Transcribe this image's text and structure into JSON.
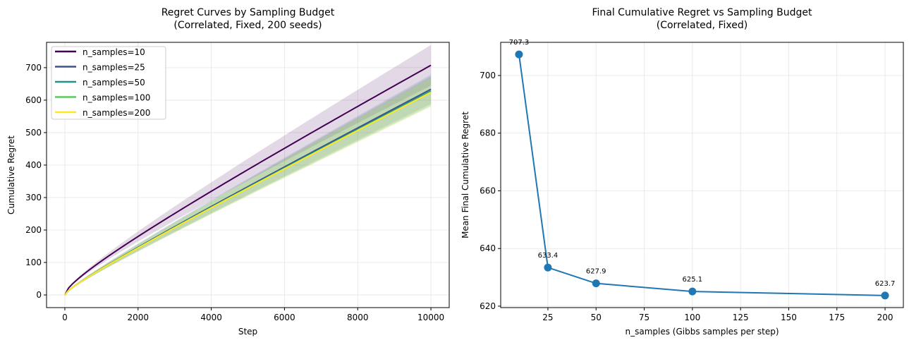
{
  "chart_data": [
    {
      "type": "line",
      "title_line1": "Regret Curves by Sampling Budget",
      "title_line2": "(Correlated, Fixed, 200 seeds)",
      "xlabel": "Step",
      "ylabel": "Cumulative Regret",
      "xlim": [
        -500,
        10500
      ],
      "ylim": [
        -39,
        778
      ],
      "xticks": [
        0,
        2000,
        4000,
        6000,
        8000,
        10000
      ],
      "yticks": [
        0,
        100,
        200,
        300,
        400,
        500,
        600,
        700
      ],
      "grid": true,
      "legend_position": "top-left",
      "series": [
        {
          "name": "n_samples=10",
          "color": "#440154",
          "final": 707.3,
          "band": 50
        },
        {
          "name": "n_samples=25",
          "color": "#3b528b",
          "final": 633.4,
          "band": 36
        },
        {
          "name": "n_samples=50",
          "color": "#21918c",
          "final": 627.9,
          "band": 36
        },
        {
          "name": "n_samples=100",
          "color": "#5ec962",
          "final": 625.1,
          "band": 36
        },
        {
          "name": "n_samples=200",
          "color": "#fde725",
          "final": 623.7,
          "band": 36
        }
      ]
    },
    {
      "type": "line",
      "title_line1": "Final Cumulative Regret vs Sampling Budget",
      "title_line2": "(Correlated, Fixed)",
      "xlabel": "n_samples (Gibbs samples per step)",
      "ylabel": "Mean Final Cumulative Regret",
      "xlim": [
        0.5,
        209.5
      ],
      "ylim": [
        619.5,
        711.5
      ],
      "xticks": [
        25,
        50,
        75,
        100,
        125,
        150,
        175,
        200
      ],
      "yticks": [
        620,
        640,
        660,
        680,
        700
      ],
      "grid": true,
      "color": "#1f77b4",
      "x": [
        10,
        25,
        50,
        100,
        200
      ],
      "y": [
        707.3,
        633.4,
        627.9,
        625.1,
        623.7
      ],
      "labels": [
        "707.3",
        "633.4",
        "627.9",
        "625.1",
        "623.7"
      ]
    }
  ]
}
